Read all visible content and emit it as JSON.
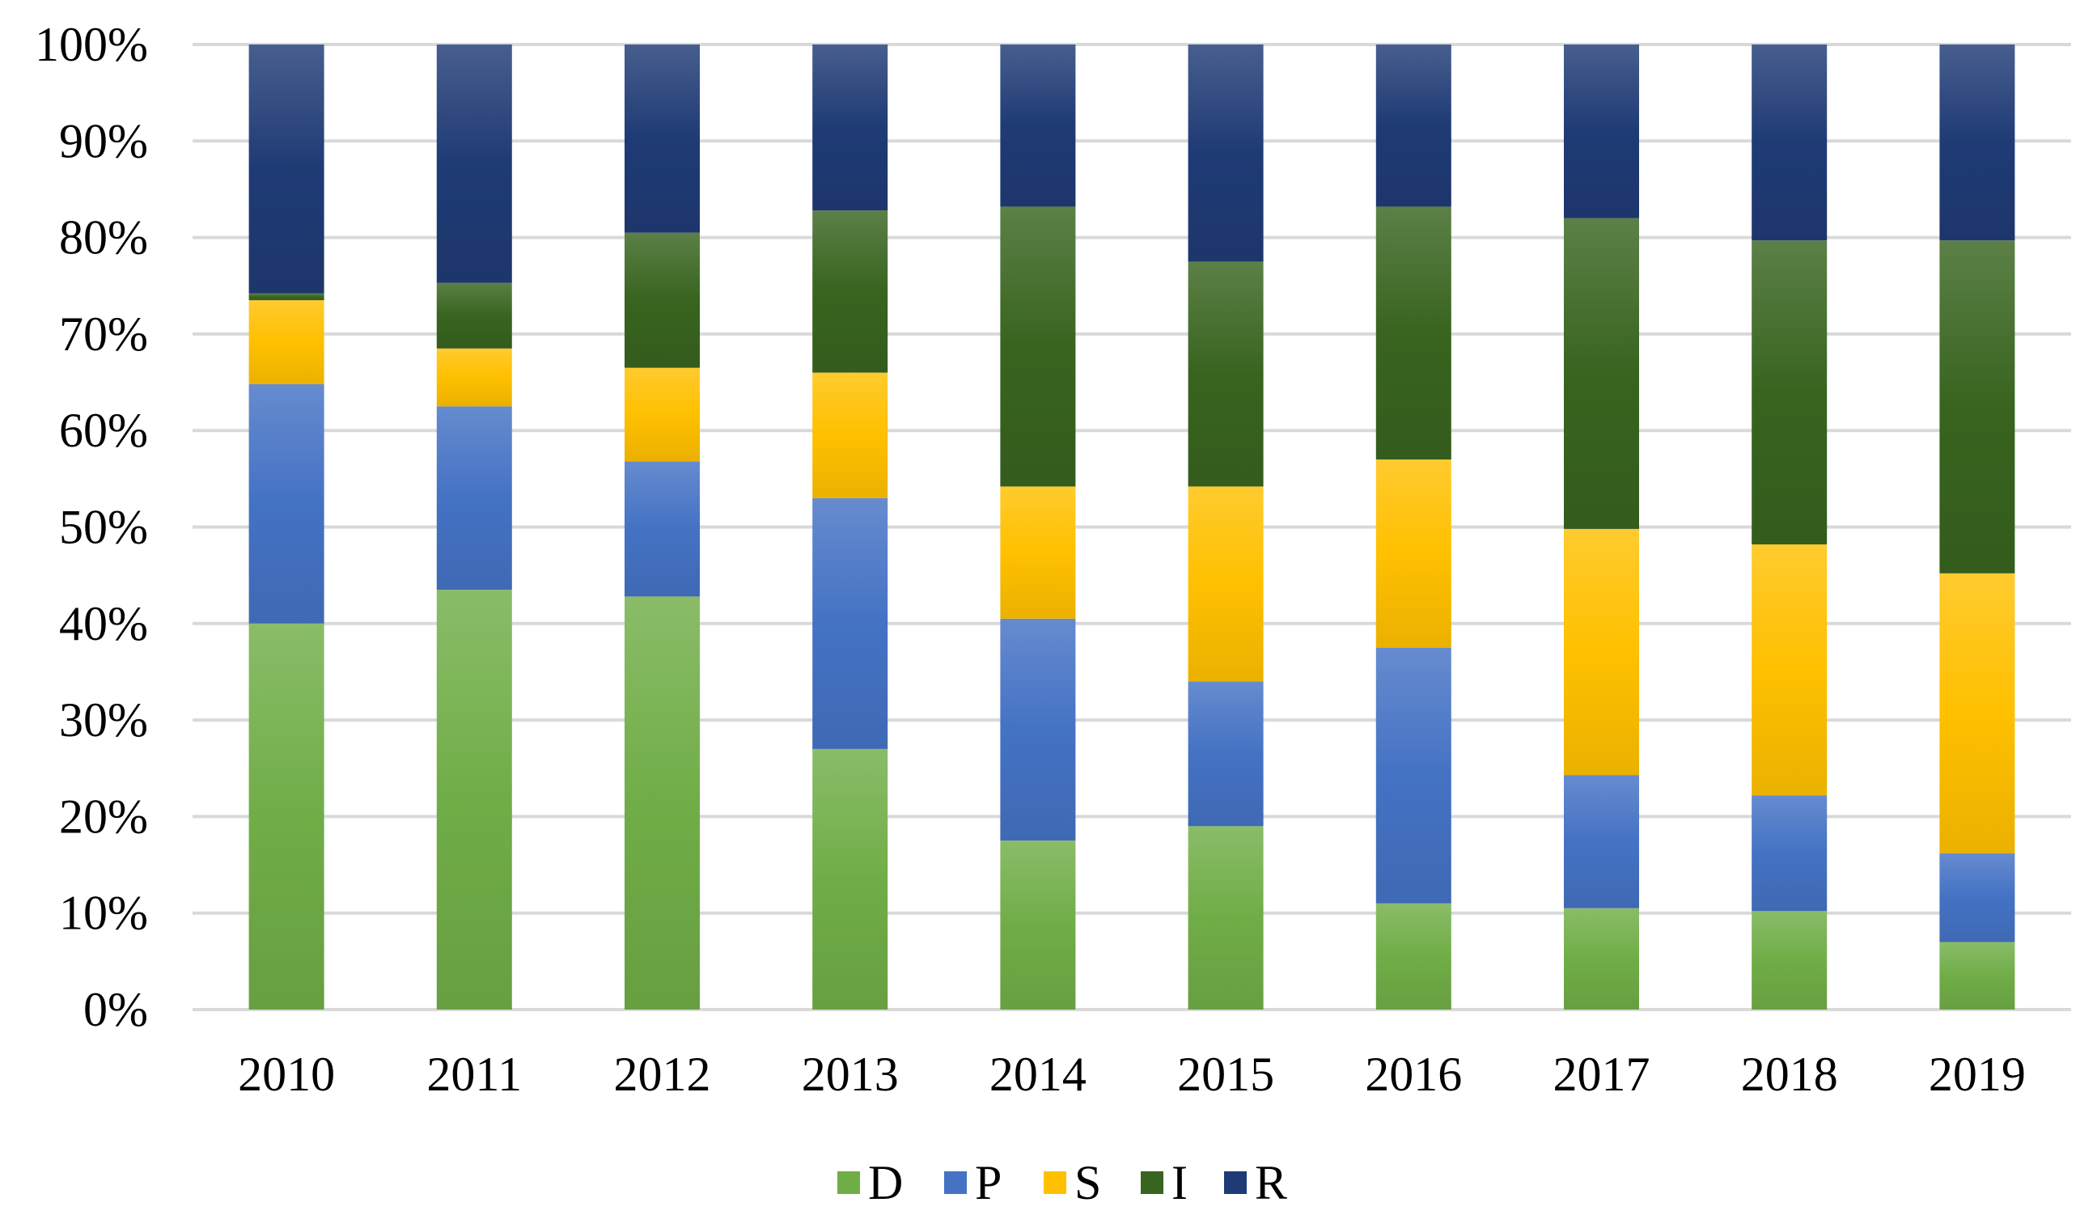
{
  "chart_data": {
    "type": "bar",
    "stacked": true,
    "percent": true,
    "title": "",
    "xlabel": "",
    "ylabel": "",
    "ylim": [
      0,
      100
    ],
    "yticks": [
      "0%",
      "10%",
      "20%",
      "30%",
      "40%",
      "50%",
      "60%",
      "70%",
      "80%",
      "90%",
      "100%"
    ],
    "grid": true,
    "legend_position": "bottom",
    "categories": [
      "2010",
      "2011",
      "2012",
      "2013",
      "2014",
      "2015",
      "2016",
      "2017",
      "2018",
      "2019"
    ],
    "series": [
      {
        "name": "D",
        "color": "#70AD47",
        "values": [
          40.0,
          43.5,
          42.8,
          27.0,
          17.5,
          19.0,
          11.0,
          10.5,
          10.2,
          7.0
        ]
      },
      {
        "name": "P",
        "color": "#4472C4",
        "values": [
          24.8,
          19.0,
          14.0,
          26.0,
          23.0,
          15.0,
          26.5,
          13.8,
          12.0,
          9.2
        ]
      },
      {
        "name": "S",
        "color": "#FFC000",
        "values": [
          8.7,
          6.0,
          9.7,
          13.0,
          13.7,
          20.2,
          19.5,
          25.5,
          26.0,
          29.0
        ]
      },
      {
        "name": "I",
        "color": "#38641F",
        "values": [
          0.7,
          6.8,
          14.0,
          16.8,
          29.0,
          23.3,
          26.2,
          32.2,
          31.5,
          34.5
        ]
      },
      {
        "name": "R",
        "color": "#1F3B75",
        "values": [
          25.8,
          24.7,
          19.5,
          17.2,
          16.8,
          22.5,
          16.8,
          18.0,
          20.3,
          20.3
        ]
      }
    ]
  }
}
